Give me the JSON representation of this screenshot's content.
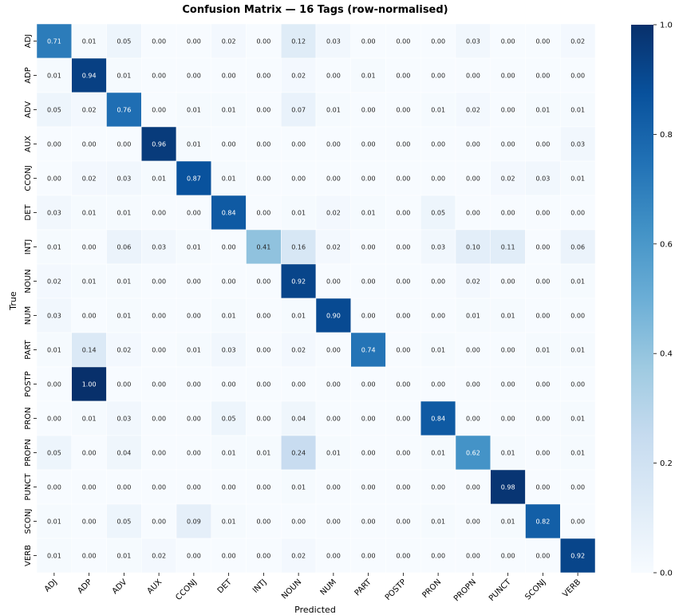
{
  "chart_data": {
    "type": "heatmap",
    "title": "Confusion Matrix — 16 Tags (row-normalised)",
    "xlabel": "Predicted",
    "ylabel": "True",
    "x_categories": [
      "ADJ",
      "ADP",
      "ADV",
      "AUX",
      "CCONJ",
      "DET",
      "INTJ",
      "NOUN",
      "NUM",
      "PART",
      "POSTP",
      "PRON",
      "PROPN",
      "PUNCT",
      "SCONJ",
      "VERB"
    ],
    "y_categories": [
      "ADJ",
      "ADP",
      "ADV",
      "AUX",
      "CCONJ",
      "DET",
      "INTJ",
      "NOUN",
      "NUM",
      "PART",
      "POSTP",
      "PRON",
      "PROPN",
      "PUNCT",
      "SCONJ",
      "VERB"
    ],
    "values": [
      [
        0.71,
        0.01,
        0.05,
        0.0,
        0.0,
        0.02,
        0.0,
        0.12,
        0.03,
        0.0,
        0.0,
        0.0,
        0.03,
        0.0,
        0.0,
        0.02
      ],
      [
        0.01,
        0.94,
        0.01,
        0.0,
        0.0,
        0.0,
        0.0,
        0.02,
        0.0,
        0.01,
        0.0,
        0.0,
        0.0,
        0.0,
        0.0,
        0.0
      ],
      [
        0.05,
        0.02,
        0.76,
        0.0,
        0.01,
        0.01,
        0.0,
        0.07,
        0.01,
        0.0,
        0.0,
        0.01,
        0.02,
        0.0,
        0.01,
        0.01
      ],
      [
        0.0,
        0.0,
        0.0,
        0.96,
        0.01,
        0.0,
        0.0,
        0.0,
        0.0,
        0.0,
        0.0,
        0.0,
        0.0,
        0.0,
        0.0,
        0.03
      ],
      [
        0.0,
        0.02,
        0.03,
        0.01,
        0.87,
        0.01,
        0.0,
        0.0,
        0.0,
        0.0,
        0.0,
        0.0,
        0.0,
        0.02,
        0.03,
        0.01
      ],
      [
        0.03,
        0.01,
        0.01,
        0.0,
        0.0,
        0.84,
        0.0,
        0.01,
        0.02,
        0.01,
        0.0,
        0.05,
        0.0,
        0.0,
        0.0,
        0.0
      ],
      [
        0.01,
        0.0,
        0.06,
        0.03,
        0.01,
        0.0,
        0.41,
        0.16,
        0.02,
        0.0,
        0.0,
        0.03,
        0.1,
        0.11,
        0.0,
        0.06
      ],
      [
        0.02,
        0.01,
        0.01,
        0.0,
        0.0,
        0.0,
        0.0,
        0.92,
        0.0,
        0.0,
        0.0,
        0.0,
        0.02,
        0.0,
        0.0,
        0.01
      ],
      [
        0.03,
        0.0,
        0.01,
        0.0,
        0.0,
        0.01,
        0.0,
        0.01,
        0.9,
        0.0,
        0.0,
        0.0,
        0.01,
        0.01,
        0.0,
        0.0
      ],
      [
        0.01,
        0.14,
        0.02,
        0.0,
        0.01,
        0.03,
        0.0,
        0.02,
        0.0,
        0.74,
        0.0,
        0.01,
        0.0,
        0.0,
        0.01,
        0.01
      ],
      [
        0.0,
        1.0,
        0.0,
        0.0,
        0.0,
        0.0,
        0.0,
        0.0,
        0.0,
        0.0,
        0.0,
        0.0,
        0.0,
        0.0,
        0.0,
        0.0
      ],
      [
        0.0,
        0.01,
        0.03,
        0.0,
        0.0,
        0.05,
        0.0,
        0.04,
        0.0,
        0.0,
        0.0,
        0.84,
        0.0,
        0.0,
        0.0,
        0.01
      ],
      [
        0.05,
        0.0,
        0.04,
        0.0,
        0.0,
        0.01,
        0.01,
        0.24,
        0.01,
        0.0,
        0.0,
        0.01,
        0.62,
        0.01,
        0.0,
        0.01
      ],
      [
        0.0,
        0.0,
        0.0,
        0.0,
        0.0,
        0.0,
        0.0,
        0.01,
        0.0,
        0.0,
        0.0,
        0.0,
        0.0,
        0.98,
        0.0,
        0.0
      ],
      [
        0.01,
        0.0,
        0.05,
        0.0,
        0.09,
        0.01,
        0.0,
        0.0,
        0.0,
        0.0,
        0.0,
        0.01,
        0.0,
        0.01,
        0.82,
        0.0
      ],
      [
        0.01,
        0.0,
        0.01,
        0.02,
        0.0,
        0.0,
        0.0,
        0.02,
        0.0,
        0.0,
        0.0,
        0.0,
        0.0,
        0.0,
        0.0,
        0.92
      ]
    ],
    "value_range": [
      0.0,
      1.0
    ],
    "colormap": "Blues",
    "colorbar_ticks": [
      "0.0",
      "0.2",
      "0.4",
      "0.6",
      "0.8",
      "1.0"
    ],
    "grid": false,
    "legend": "colorbar-right"
  }
}
